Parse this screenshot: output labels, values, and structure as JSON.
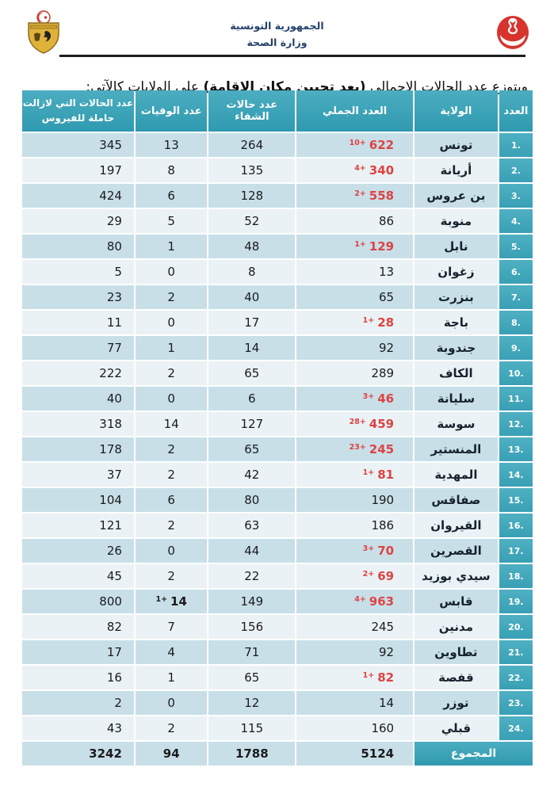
{
  "page": {
    "republic": "الجمهورية التونسية",
    "ministry": "وزارة الصحة",
    "title_pre": "ويتوزع عدد الحالات الاجمالي ",
    "title_bold": "(بعد تحيين مكان الإقامة)",
    "title_post": " على الولايات كالآتي:"
  },
  "icons": {
    "left": "tunisia-coat-of-arms",
    "right": "ministry-of-health-logo"
  },
  "colors": {
    "header_teal": "#2f9ab0",
    "index_teal": "#39a0b5",
    "row_odd": "#c8dfe8",
    "row_even": "#eaf2f5",
    "highlight_red": "#de4343",
    "navy_text": "#24406a"
  },
  "table": {
    "headers": {
      "index": "العدد",
      "governorate": "الولاية",
      "total": "العدد الجملي",
      "recovered": "عدد حالات الشفاء",
      "deaths": "عدد الوفيات",
      "active_line1": "عدد الحالات التي لازالت",
      "active_line2": "حاملة للفيروس"
    },
    "rows": [
      {
        "index": ".1",
        "governorate": "تونس",
        "total": "622",
        "total_delta": "10+",
        "recovered": "264",
        "deaths": "13",
        "active": "345"
      },
      {
        "index": ".2",
        "governorate": "أريانة",
        "total": "340",
        "total_delta": "4+",
        "recovered": "135",
        "deaths": "8",
        "active": "197"
      },
      {
        "index": ".3",
        "governorate": "بن عروس",
        "total": "558",
        "total_delta": "2+",
        "recovered": "128",
        "deaths": "6",
        "active": "424"
      },
      {
        "index": ".4",
        "governorate": "منوبة",
        "total": "86",
        "total_delta": "",
        "recovered": "52",
        "deaths": "5",
        "active": "29"
      },
      {
        "index": ".5",
        "governorate": "نابل",
        "total": "129",
        "total_delta": "1+",
        "recovered": "48",
        "deaths": "1",
        "active": "80"
      },
      {
        "index": ".6",
        "governorate": "زغوان",
        "total": "13",
        "total_delta": "",
        "recovered": "8",
        "deaths": "0",
        "active": "5"
      },
      {
        "index": ".7",
        "governorate": "بنزرت",
        "total": "65",
        "total_delta": "",
        "recovered": "40",
        "deaths": "2",
        "active": "23"
      },
      {
        "index": ".8",
        "governorate": "باجة",
        "total": "28",
        "total_delta": "1+",
        "recovered": "17",
        "deaths": "0",
        "active": "11"
      },
      {
        "index": ".9",
        "governorate": "جندوبة",
        "total": "92",
        "total_delta": "",
        "recovered": "14",
        "deaths": "1",
        "active": "77"
      },
      {
        "index": ".10",
        "governorate": "الكاف",
        "total": "289",
        "total_delta": "",
        "recovered": "65",
        "deaths": "2",
        "active": "222"
      },
      {
        "index": ".11",
        "governorate": "سليانة",
        "total": "46",
        "total_delta": "3+",
        "recovered": "6",
        "deaths": "0",
        "active": "40"
      },
      {
        "index": ".12",
        "governorate": "سوسة",
        "total": "459",
        "total_delta": "28+",
        "recovered": "127",
        "deaths": "14",
        "active": "318"
      },
      {
        "index": ".13",
        "governorate": "المنستير",
        "total": "245",
        "total_delta": "23+",
        "recovered": "65",
        "deaths": "2",
        "active": "178"
      },
      {
        "index": ".14",
        "governorate": "المهدية",
        "total": "81",
        "total_delta": "1+",
        "recovered": "42",
        "deaths": "2",
        "active": "37"
      },
      {
        "index": ".15",
        "governorate": "صفاقس",
        "total": "190",
        "total_delta": "",
        "recovered": "80",
        "deaths": "6",
        "active": "104"
      },
      {
        "index": ".16",
        "governorate": "القيروان",
        "total": "186",
        "total_delta": "",
        "recovered": "63",
        "deaths": "2",
        "active": "121"
      },
      {
        "index": ".17",
        "governorate": "القصرين",
        "total": "70",
        "total_delta": "3+",
        "recovered": "44",
        "deaths": "0",
        "active": "26"
      },
      {
        "index": ".18",
        "governorate": "سيدي بوزيد",
        "total": "69",
        "total_delta": "2+",
        "recovered": "22",
        "deaths": "2",
        "active": "45"
      },
      {
        "index": ".19",
        "governorate": "قابس",
        "total": "963",
        "total_delta": "4+",
        "recovered": "149",
        "deaths": "14",
        "deaths_delta": "1+",
        "active": "800"
      },
      {
        "index": ".20",
        "governorate": "مدنين",
        "total": "245",
        "total_delta": "",
        "recovered": "156",
        "deaths": "7",
        "active": "82"
      },
      {
        "index": ".21",
        "governorate": "تطاوين",
        "total": "92",
        "total_delta": "",
        "recovered": "71",
        "deaths": "4",
        "active": "17"
      },
      {
        "index": ".22",
        "governorate": "قفصة",
        "total": "82",
        "total_delta": "1+",
        "recovered": "65",
        "deaths": "1",
        "active": "16"
      },
      {
        "index": ".23",
        "governorate": "توزر",
        "total": "14",
        "total_delta": "",
        "recovered": "12",
        "deaths": "0",
        "active": "2"
      },
      {
        "index": ".24",
        "governorate": "قبلي",
        "total": "160",
        "total_delta": "",
        "recovered": "115",
        "deaths": "2",
        "active": "43"
      }
    ],
    "total_row": {
      "label": "المجموع",
      "total": "5124",
      "recovered": "1788",
      "deaths": "94",
      "active": "3242"
    }
  }
}
